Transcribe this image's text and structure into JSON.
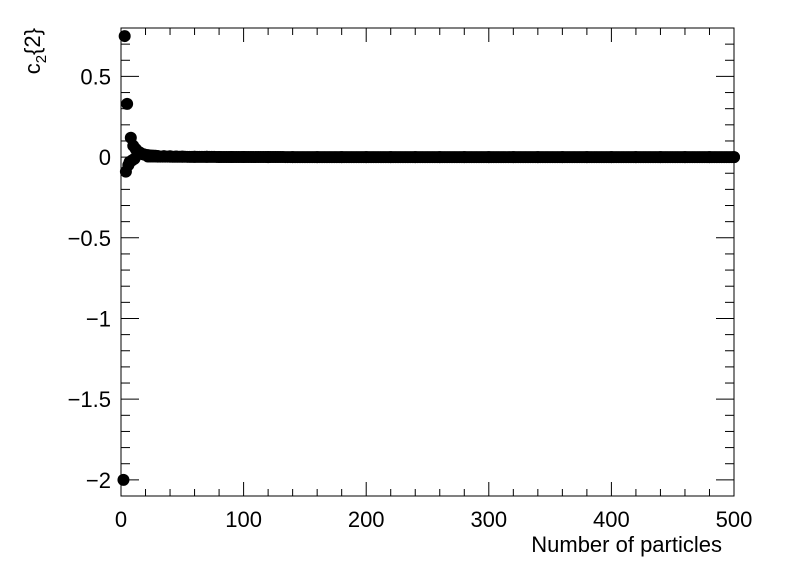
{
  "chart_data": {
    "type": "scatter",
    "xlabel": "Number of particles",
    "ylabel_main": "c",
    "ylabel_sub": "2",
    "ylabel_tail": "{2}",
    "xlim": [
      0,
      500
    ],
    "ylim": [
      -2.1,
      0.8
    ],
    "xticks": [
      0,
      100,
      200,
      300,
      400,
      500
    ],
    "xtick_labels": [
      "0",
      "100",
      "200",
      "300",
      "400",
      "500"
    ],
    "yticks": [
      -2,
      -1.5,
      -1,
      -0.5,
      0,
      0.5
    ],
    "ytick_labels": [
      "−2",
      "−1.5",
      "−1",
      "−0.5",
      "0",
      "0.5"
    ],
    "grid": false,
    "marker": {
      "shape": "circle",
      "color": "#000000"
    },
    "points": {
      "x": [
        2,
        3,
        4,
        5,
        6,
        7,
        8,
        9,
        10,
        11,
        12,
        13,
        14,
        15,
        16,
        17,
        18,
        19,
        20,
        22,
        24,
        26,
        28,
        30,
        35,
        40,
        45,
        50,
        60,
        70,
        80,
        90,
        100,
        120,
        140,
        160,
        180,
        200,
        220,
        240,
        260,
        280,
        300,
        320,
        340,
        360,
        380,
        400,
        420,
        440,
        460,
        480,
        500
      ],
      "y": [
        -2.0,
        0.75,
        -0.09,
        0.33,
        -0.05,
        -0.03,
        0.12,
        -0.02,
        0.07,
        -0.01,
        0.05,
        0.04,
        0.03,
        0.03,
        0.025,
        0.02,
        0.018,
        0.016,
        0.014,
        0.012,
        0.01,
        0.009,
        0.008,
        0.007,
        0.006,
        0.005,
        0.004,
        0.003,
        0.002,
        0.002,
        0.001,
        0.001,
        0.001,
        0.0,
        0.0,
        0.0,
        0.0,
        0.0,
        0.0,
        0.0,
        0.0,
        0.0,
        0.0,
        0.0,
        0.0,
        0.0,
        0.0,
        0.0,
        0.0,
        0.0,
        0.0,
        0.0,
        0.0
      ]
    }
  }
}
